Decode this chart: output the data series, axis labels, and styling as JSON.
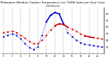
{
  "title": "Milwaukee Weather Outdoor Temperature (vs) THSW Index per Hour (Last 24 Hours)",
  "title_fontsize": 3.0,
  "background_color": "#ffffff",
  "grid_color": "#888888",
  "ylim": [
    20,
    90
  ],
  "yticks_right": [
    30,
    40,
    50,
    60,
    70,
    80
  ],
  "hours": [
    0,
    1,
    2,
    3,
    4,
    5,
    6,
    7,
    8,
    9,
    10,
    11,
    12,
    13,
    14,
    15,
    16,
    17,
    18,
    19,
    20,
    21,
    22,
    23
  ],
  "outdoor_temp": [
    52,
    53,
    54,
    52,
    48,
    43,
    38,
    35,
    35,
    40,
    48,
    56,
    62,
    65,
    64,
    60,
    57,
    54,
    50,
    47,
    45,
    44,
    43,
    42
  ],
  "thsw_index": [
    46,
    48,
    50,
    48,
    42,
    35,
    29,
    26,
    30,
    48,
    68,
    78,
    82,
    80,
    65,
    52,
    46,
    40,
    36,
    34,
    33,
    32,
    31,
    30
  ],
  "outdoor_color": "#cc0000",
  "thsw_color": "#0000cc",
  "line_width": 0.7,
  "dot_size": 1.5,
  "figsize": [
    1.6,
    0.87
  ],
  "dpi": 100
}
